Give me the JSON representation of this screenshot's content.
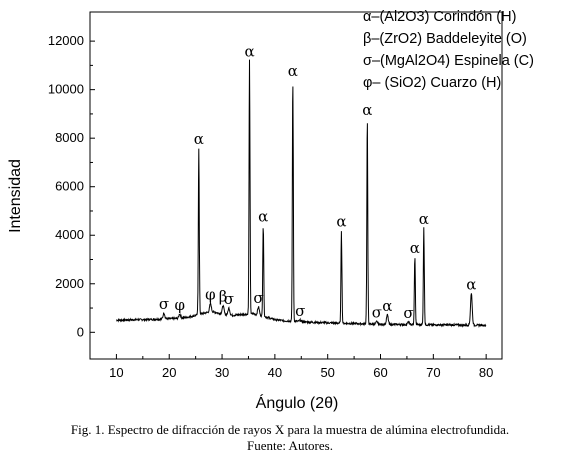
{
  "chart_data": {
    "type": "line",
    "xlabel": "Ángulo (2θ)",
    "ylabel": "Intensidad",
    "xlim": [
      5,
      83
    ],
    "ylim": [
      -1100,
      13200
    ],
    "xticks": [
      10,
      20,
      30,
      40,
      50,
      60,
      70,
      80
    ],
    "yticks": [
      0,
      2000,
      4000,
      6000,
      8000,
      10000,
      12000
    ],
    "grid": false,
    "legend_position": "top-right",
    "legend": [
      {
        "symbol": "α",
        "phase": "(Al2O3) Corindón (H)",
        "text": "α–(Al2O3) Corindón (H)"
      },
      {
        "symbol": "β",
        "phase": "(ZrO2) Baddeleyite (O)",
        "text": "β–(ZrO2) Baddeleyite (O)"
      },
      {
        "symbol": "σ",
        "phase": "(MgAl2O4) Espinela (C)",
        "text": "σ–(MgAl2O4) Espinela (C)"
      },
      {
        "symbol": "φ",
        "phase": "(SiO2) Cuarzo (H)",
        "text": "φ– (SiO2) Cuarzo (H)"
      }
    ],
    "baseline": [
      [
        10,
        500
      ],
      [
        14,
        520
      ],
      [
        18,
        540
      ],
      [
        20,
        560
      ],
      [
        22,
        580
      ],
      [
        24,
        640
      ],
      [
        26,
        760
      ],
      [
        28,
        860
      ],
      [
        30,
        760
      ],
      [
        32,
        700
      ],
      [
        34,
        740
      ],
      [
        36,
        760
      ],
      [
        38,
        650
      ],
      [
        40,
        520
      ],
      [
        42,
        470
      ],
      [
        44,
        460
      ],
      [
        46,
        420
      ],
      [
        50,
        390
      ],
      [
        55,
        360
      ],
      [
        60,
        330
      ],
      [
        65,
        320
      ],
      [
        70,
        310
      ],
      [
        75,
        300
      ],
      [
        80,
        290
      ]
    ],
    "peaks": [
      {
        "x": 19.0,
        "y": 800,
        "label": "σ"
      },
      {
        "x": 22.0,
        "y": 760,
        "label": "φ"
      },
      {
        "x": 25.6,
        "y": 7600,
        "label": "α"
      },
      {
        "x": 27.8,
        "y": 1180,
        "label": "φ"
      },
      {
        "x": 30.2,
        "y": 1100,
        "label": "β"
      },
      {
        "x": 31.3,
        "y": 1000,
        "label": "σ"
      },
      {
        "x": 35.2,
        "y": 11200,
        "label": "α"
      },
      {
        "x": 36.9,
        "y": 1050,
        "label": "σ"
      },
      {
        "x": 37.8,
        "y": 4400,
        "label": "α"
      },
      {
        "x": 43.4,
        "y": 10400,
        "label": "α"
      },
      {
        "x": 44.8,
        "y": 500,
        "label": "σ"
      },
      {
        "x": 52.6,
        "y": 4200,
        "label": "α"
      },
      {
        "x": 57.5,
        "y": 8800,
        "label": "α"
      },
      {
        "x": 59.3,
        "y": 440,
        "label": "σ"
      },
      {
        "x": 61.3,
        "y": 720,
        "label": "α"
      },
      {
        "x": 65.3,
        "y": 430,
        "label": "σ"
      },
      {
        "x": 66.5,
        "y": 3100,
        "label": "α"
      },
      {
        "x": 68.2,
        "y": 4300,
        "label": "α"
      },
      {
        "x": 77.2,
        "y": 1600,
        "label": "α"
      }
    ]
  },
  "caption": {
    "line1": "Fig. 1. Espectro de difracción de rayos X para la muestra de alúmina electrofundida.",
    "line2": "Fuente: Autores."
  }
}
